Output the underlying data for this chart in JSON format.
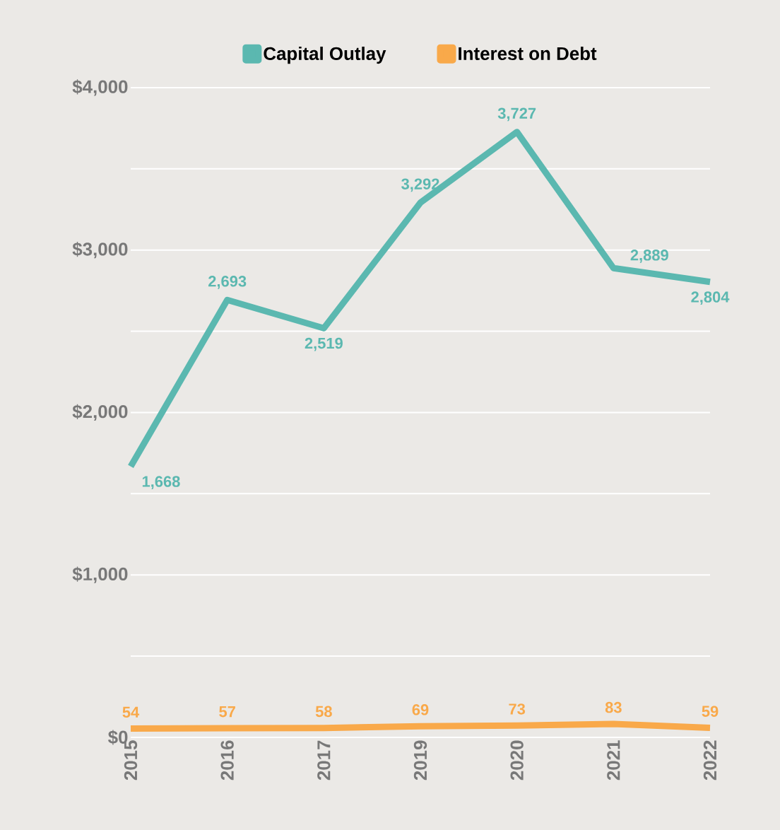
{
  "chart_data": {
    "type": "line",
    "categories": [
      "2015",
      "2016",
      "2017",
      "2019",
      "2020",
      "2021",
      "2022"
    ],
    "series": [
      {
        "name": "Capital Outlay",
        "color": "#5bb8b0",
        "values": [
          1668,
          2693,
          2519,
          3292,
          3727,
          2889,
          2804
        ],
        "value_labels": [
          "1,668",
          "2,693",
          "2,519",
          "3,292",
          "3,727",
          "2,889",
          "2,804"
        ]
      },
      {
        "name": "Interest on Debt",
        "color": "#f9a94a",
        "values": [
          54,
          57,
          58,
          69,
          73,
          83,
          59
        ],
        "value_labels": [
          "54",
          "57",
          "58",
          "69",
          "73",
          "83",
          "59"
        ]
      }
    ],
    "ylim": [
      0,
      4000
    ],
    "yticks": [
      {
        "value": 0,
        "label": "$0"
      },
      {
        "value": 500,
        "label": null
      },
      {
        "value": 1000,
        "label": "$1,000"
      },
      {
        "value": 1500,
        "label": null
      },
      {
        "value": 2000,
        "label": "$2,000"
      },
      {
        "value": 2500,
        "label": null
      },
      {
        "value": 3000,
        "label": "$3,000"
      },
      {
        "value": 3500,
        "label": null
      },
      {
        "value": 4000,
        "label": "$4,000"
      }
    ],
    "grid": "y",
    "legend": "top"
  }
}
